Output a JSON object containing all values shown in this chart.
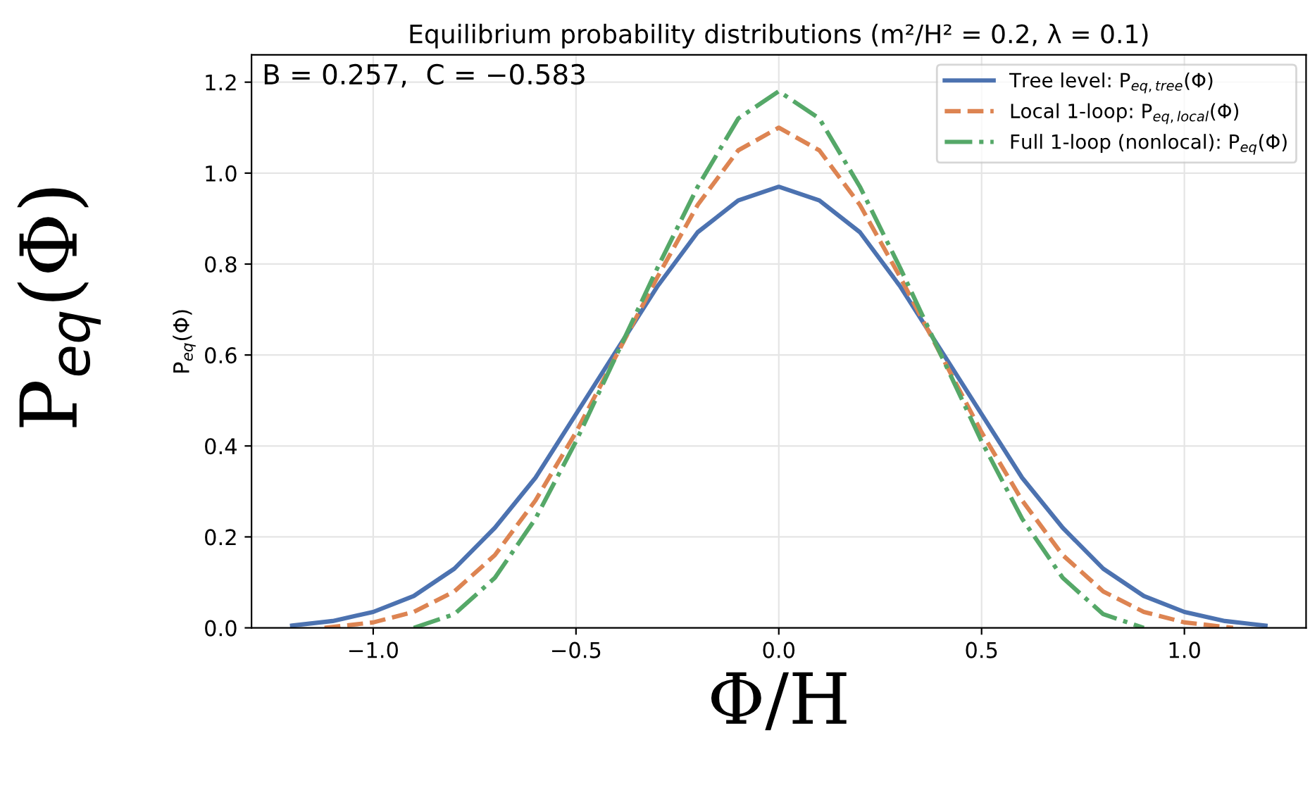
{
  "chart_data": {
    "type": "line",
    "title": "Equilibrium probability distributions (m²/H² = 0.2, λ = 0.1)",
    "xlabel": "Φ/H",
    "ylabel": "P$_{eq}$(Φ)",
    "annotations": [
      "B = 0.257,  C = −0.583",
      "P$_{eq}$(Φ)"
    ],
    "xlim": [
      -1.3,
      1.3
    ],
    "ylim": [
      0,
      1.26
    ],
    "xticks": [
      {
        "value": -1.0,
        "label": "−1.0"
      },
      {
        "value": -0.5,
        "label": "−0.5"
      },
      {
        "value": 0,
        "label": "0.0"
      },
      {
        "value": 0.5,
        "label": "0.5"
      },
      {
        "value": 1.0,
        "label": "1.0"
      }
    ],
    "yticks": [
      {
        "value": 0,
        "label": "0.0"
      },
      {
        "value": 0.2,
        "label": "0.2"
      },
      {
        "value": 0.4,
        "label": "0.4"
      },
      {
        "value": 0.6,
        "label": "0.6"
      },
      {
        "value": 0.8,
        "label": "0.8"
      },
      {
        "value": 1.0,
        "label": "1.0"
      },
      {
        "value": 1.2,
        "label": "1.2"
      }
    ],
    "grid": true,
    "legend": "top right",
    "series": [
      {
        "name": "Tree level: P$_{eq,tree}$(Φ)",
        "color": "#4c72b0",
        "line_style": "solid",
        "x": [
          -1.2,
          -1.1,
          -1.0,
          -0.9,
          -0.8,
          -0.7,
          -0.6,
          -0.5,
          -0.4,
          -0.3,
          -0.2,
          -0.1,
          0,
          0.1,
          0.2,
          0.3,
          0.4,
          0.5,
          0.6,
          0.7,
          0.8,
          0.9,
          1.0,
          1.1,
          1.2
        ],
        "values": [
          0.005,
          0.015,
          0.035,
          0.07,
          0.13,
          0.22,
          0.33,
          0.47,
          0.61,
          0.75,
          0.87,
          0.94,
          0.97,
          0.94,
          0.87,
          0.75,
          0.61,
          0.47,
          0.33,
          0.22,
          0.13,
          0.07,
          0.035,
          0.015,
          0.005
        ]
      },
      {
        "name": "Local 1-loop: P$_{eq,local}$(Φ)",
        "color": "#dd8452",
        "line_style": "dashed",
        "x": [
          -1.12,
          -1.0,
          -0.9,
          -0.8,
          -0.7,
          -0.6,
          -0.5,
          -0.4,
          -0.3,
          -0.2,
          -0.1,
          0,
          0.1,
          0.2,
          0.3,
          0.4,
          0.5,
          0.6,
          0.7,
          0.8,
          0.9,
          1.0,
          1.12
        ],
        "values": [
          0.0,
          0.012,
          0.035,
          0.08,
          0.16,
          0.28,
          0.43,
          0.6,
          0.77,
          0.93,
          1.05,
          1.1,
          1.05,
          0.93,
          0.77,
          0.6,
          0.43,
          0.28,
          0.16,
          0.08,
          0.035,
          0.012,
          0.0
        ]
      },
      {
        "name": "Full 1-loop (nonlocal): P$_{eq}$(Φ)",
        "color": "#55a868",
        "line_style": "dashdot",
        "x": [
          -0.9,
          -0.8,
          -0.7,
          -0.6,
          -0.5,
          -0.4,
          -0.3,
          -0.2,
          -0.1,
          0,
          0.1,
          0.2,
          0.3,
          0.4,
          0.5,
          0.6,
          0.7,
          0.8,
          0.9
        ],
        "values": [
          0.0,
          0.03,
          0.11,
          0.24,
          0.41,
          0.6,
          0.79,
          0.97,
          1.12,
          1.18,
          1.12,
          0.97,
          0.79,
          0.6,
          0.41,
          0.24,
          0.11,
          0.03,
          0.0
        ]
      }
    ]
  }
}
